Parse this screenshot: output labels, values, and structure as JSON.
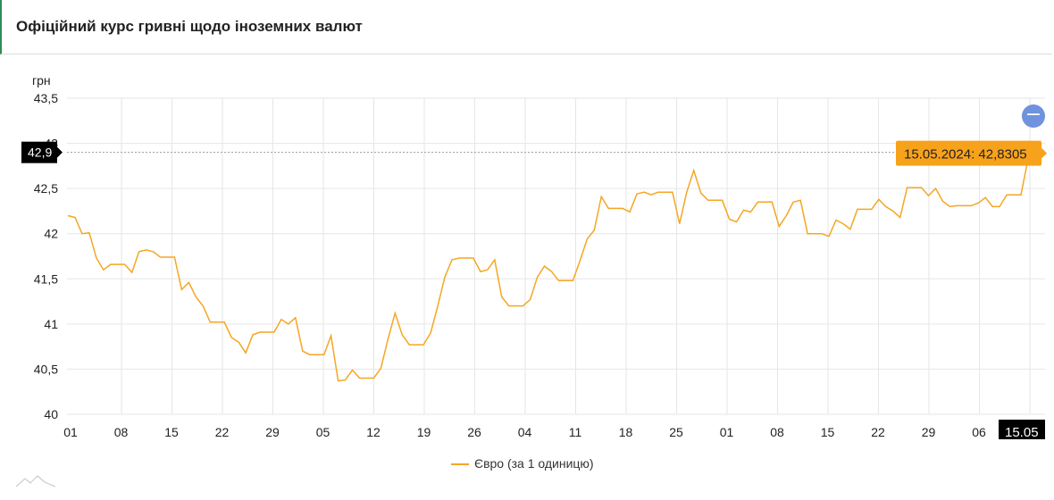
{
  "header": {
    "title": "Офіційний курс гривні щодо іноземних валют"
  },
  "tooltip": {
    "label": "15.05.2024: 42,8305"
  },
  "crosshair": {
    "y_label": "42,9",
    "x_label": "15.05"
  },
  "legend": {
    "label": "Євро (за 1 одиницю)"
  },
  "zoom_button": {
    "label": "−"
  },
  "colors": {
    "series": "#f5a623",
    "grid": "#e6e6e6",
    "tooltip_bg": "#f7a21b",
    "zoom_bg": "#6f93dd"
  },
  "chart_data": {
    "type": "line",
    "ylabel": "грн",
    "ylim": [
      40,
      43.5
    ],
    "y_ticks": [
      "40",
      "40,5",
      "41",
      "41,5",
      "42",
      "42,5",
      "43",
      "43,5"
    ],
    "x_ticks": [
      "01",
      "08",
      "15",
      "22",
      "29",
      "05",
      "12",
      "19",
      "26",
      "04",
      "11",
      "18",
      "25",
      "01",
      "08",
      "15",
      "22",
      "29",
      "06"
    ],
    "grid": true,
    "legend_position": "bottom",
    "series": [
      {
        "name": "Євро (за 1 одиницю)",
        "values": [
          42.2,
          42.18,
          42.0,
          42.01,
          41.73,
          41.6,
          41.66,
          41.66,
          41.66,
          41.57,
          41.8,
          41.82,
          41.8,
          41.74,
          41.74,
          41.74,
          41.38,
          41.46,
          41.3,
          41.2,
          41.02,
          41.02,
          41.02,
          40.85,
          40.8,
          40.68,
          40.88,
          40.91,
          40.91,
          40.91,
          41.05,
          41.0,
          41.07,
          40.7,
          40.66,
          40.66,
          40.66,
          40.87,
          40.37,
          40.38,
          40.49,
          40.4,
          40.4,
          40.4,
          40.51,
          40.83,
          41.12,
          40.88,
          40.77,
          40.77,
          40.77,
          40.9,
          41.2,
          41.52,
          41.71,
          41.73,
          41.73,
          41.73,
          41.58,
          41.6,
          41.71,
          41.3,
          41.2,
          41.2,
          41.2,
          41.27,
          41.52,
          41.64,
          41.58,
          41.48,
          41.48,
          41.48,
          41.7,
          41.94,
          42.04,
          42.41,
          42.28,
          42.28,
          42.28,
          42.24,
          42.44,
          42.46,
          42.43,
          42.46,
          42.46,
          42.46,
          42.11,
          42.46,
          42.7,
          42.45,
          42.37,
          42.37,
          42.37,
          42.16,
          42.13,
          42.26,
          42.24,
          42.35,
          42.35,
          42.35,
          42.08,
          42.2,
          42.35,
          42.37,
          42.0,
          42.0,
          42.0,
          41.97,
          42.15,
          42.11,
          42.05,
          42.27,
          42.27,
          42.27,
          42.38,
          42.3,
          42.25,
          42.18,
          42.51,
          42.51,
          42.51,
          42.42,
          42.5,
          42.36,
          42.3,
          42.31,
          42.31,
          42.31,
          42.34,
          42.4,
          42.3,
          42.3,
          42.43,
          42.43,
          42.43,
          42.83
        ]
      }
    ]
  }
}
